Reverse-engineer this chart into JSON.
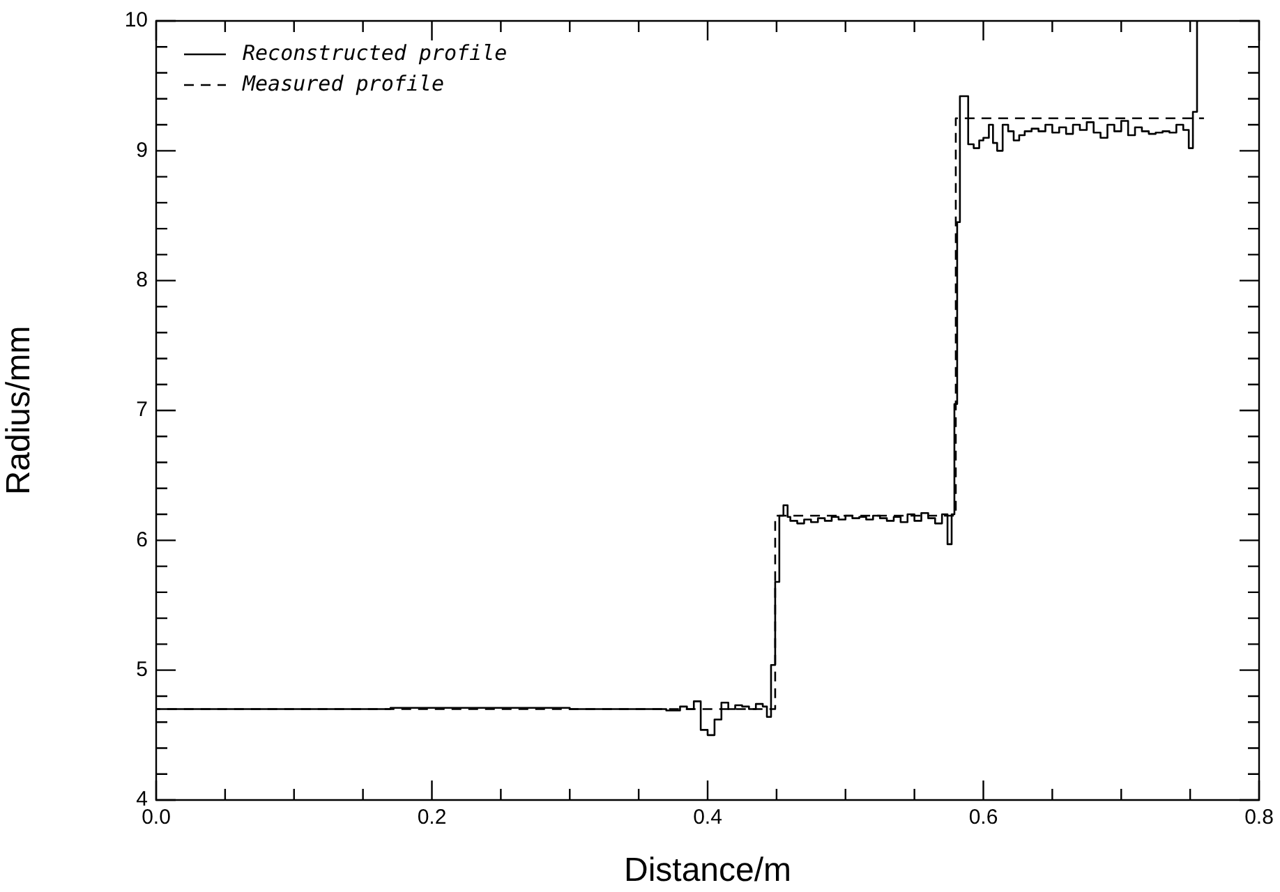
{
  "chart_data": {
    "type": "step",
    "xlabel": "Distance/m",
    "ylabel": "Radius/mm",
    "xlim": [
      0,
      0.8
    ],
    "ylim": [
      4,
      10
    ],
    "xticks": [
      {
        "value": 0,
        "label": "0.0"
      },
      {
        "value": 0.05,
        "label": null
      },
      {
        "value": 0.1,
        "label": null
      },
      {
        "value": 0.15,
        "label": null
      },
      {
        "value": 0.2,
        "label": "0.2"
      },
      {
        "value": 0.25,
        "label": null
      },
      {
        "value": 0.3,
        "label": null
      },
      {
        "value": 0.35,
        "label": null
      },
      {
        "value": 0.4,
        "label": "0.4"
      },
      {
        "value": 0.45,
        "label": null
      },
      {
        "value": 0.5,
        "label": null
      },
      {
        "value": 0.55,
        "label": null
      },
      {
        "value": 0.6,
        "label": "0.6"
      },
      {
        "value": 0.65,
        "label": null
      },
      {
        "value": 0.7,
        "label": null
      },
      {
        "value": 0.75,
        "label": null
      },
      {
        "value": 0.8,
        "label": "0.8"
      }
    ],
    "yticks": [
      4,
      {
        "value": 4.2,
        "label": null
      },
      {
        "value": 4.4,
        "label": null
      },
      {
        "value": 4.6,
        "label": null
      },
      {
        "value": 4.8,
        "label": null
      },
      5,
      {
        "value": 5.2,
        "label": null
      },
      {
        "value": 5.4,
        "label": null
      },
      {
        "value": 5.6,
        "label": null
      },
      {
        "value": 5.8,
        "label": null
      },
      6,
      {
        "value": 6.2,
        "label": null
      },
      {
        "value": 6.4,
        "label": null
      },
      {
        "value": 6.6,
        "label": null
      },
      {
        "value": 6.8,
        "label": null
      },
      7,
      {
        "value": 7.2,
        "label": null
      },
      {
        "value": 7.4,
        "label": null
      },
      {
        "value": 7.6,
        "label": null
      },
      {
        "value": 7.8,
        "label": null
      },
      8,
      {
        "value": 8.2,
        "label": null
      },
      {
        "value": 8.4,
        "label": null
      },
      {
        "value": 8.6,
        "label": null
      },
      {
        "value": 8.8,
        "label": null
      },
      9,
      {
        "value": 9.2,
        "label": null
      },
      {
        "value": 9.4,
        "label": null
      },
      {
        "value": 9.6,
        "label": null
      },
      {
        "value": 9.8,
        "label": null
      },
      10
    ],
    "legend": "top left",
    "grid": false,
    "series": [
      {
        "name": "Reconstructed profile",
        "color": "#000000",
        "line_style": "solid",
        "x": [
          0,
          0.17,
          0.25,
          0.3,
          0.37,
          0.38,
          0.385,
          0.39,
          0.395,
          0.4,
          0.405,
          0.41,
          0.415,
          0.42,
          0.425,
          0.43,
          0.435,
          0.44,
          0.443,
          0.446,
          0.449,
          0.452,
          0.455,
          0.458,
          0.46,
          0.465,
          0.47,
          0.475,
          0.48,
          0.485,
          0.49,
          0.495,
          0.5,
          0.505,
          0.51,
          0.515,
          0.52,
          0.525,
          0.53,
          0.535,
          0.54,
          0.545,
          0.55,
          0.555,
          0.56,
          0.565,
          0.57,
          0.574,
          0.577,
          0.579,
          0.581,
          0.583,
          0.589,
          0.593,
          0.597,
          0.6,
          0.604,
          0.607,
          0.61,
          0.614,
          0.618,
          0.622,
          0.626,
          0.63,
          0.635,
          0.64,
          0.645,
          0.65,
          0.655,
          0.66,
          0.665,
          0.67,
          0.675,
          0.68,
          0.685,
          0.69,
          0.695,
          0.7,
          0.705,
          0.71,
          0.715,
          0.72,
          0.725,
          0.73,
          0.735,
          0.74,
          0.745,
          0.749,
          0.752,
          0.755,
          0.756
        ],
        "values": [
          4.7,
          4.71,
          4.71,
          4.7,
          4.69,
          4.72,
          4.7,
          4.76,
          4.54,
          4.5,
          4.62,
          4.75,
          4.7,
          4.73,
          4.72,
          4.7,
          4.74,
          4.72,
          4.64,
          5.04,
          5.68,
          6.19,
          6.27,
          6.18,
          6.15,
          6.13,
          6.16,
          6.14,
          6.17,
          6.15,
          6.18,
          6.16,
          6.19,
          6.17,
          6.18,
          6.16,
          6.19,
          6.17,
          6.15,
          6.18,
          6.14,
          6.2,
          6.15,
          6.21,
          6.17,
          6.13,
          6.2,
          5.97,
          6.2,
          7.05,
          8.45,
          9.42,
          9.05,
          9.02,
          9.08,
          9.1,
          9.2,
          9.06,
          9.0,
          9.2,
          9.15,
          9.08,
          9.12,
          9.15,
          9.17,
          9.15,
          9.2,
          9.14,
          9.18,
          9.13,
          9.2,
          9.16,
          9.22,
          9.14,
          9.1,
          9.2,
          9.15,
          9.23,
          9.12,
          9.18,
          9.15,
          9.13,
          9.14,
          9.15,
          9.14,
          9.2,
          9.16,
          9.02,
          9.3,
          10,
          10
        ]
      },
      {
        "name": "Measured profile",
        "color": "#000000",
        "line_style": "dashed",
        "x": [
          0,
          0.449,
          0.58,
          0.76
        ],
        "values": [
          4.7,
          6.19,
          9.25,
          9.25
        ]
      }
    ]
  }
}
